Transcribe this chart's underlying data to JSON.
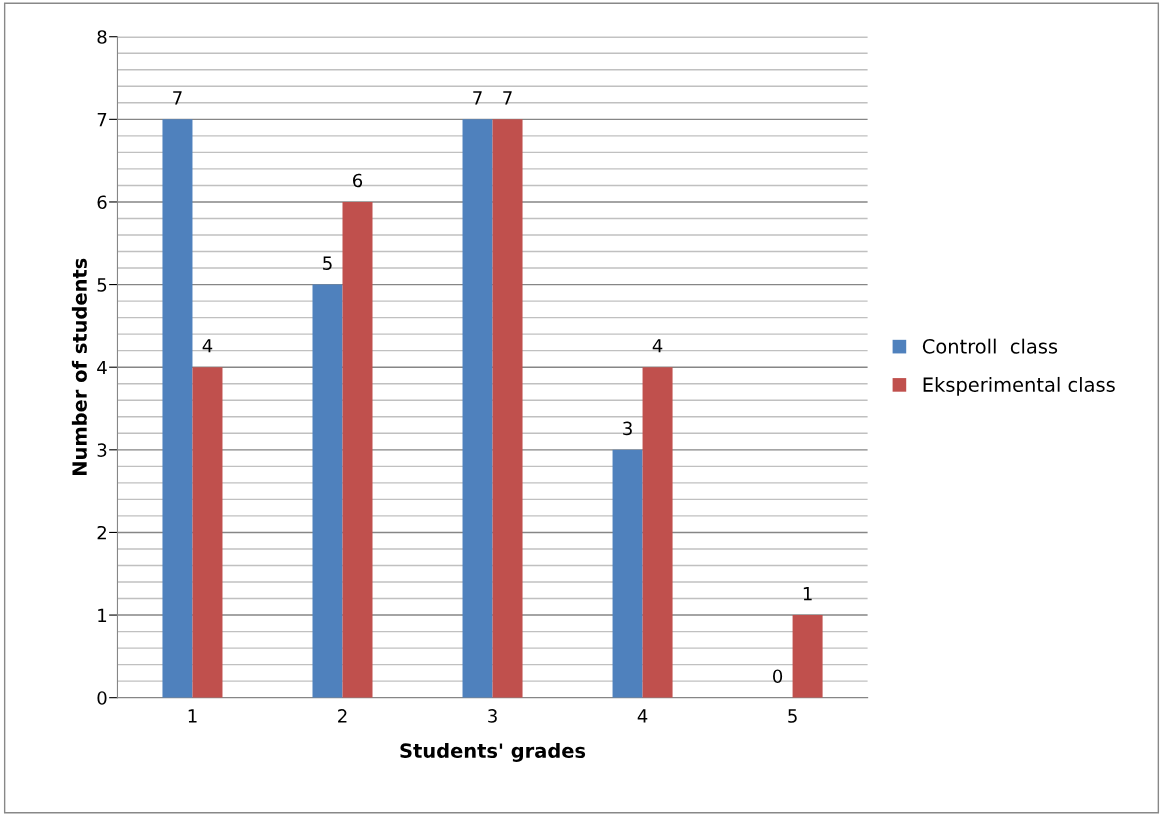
{
  "chart_data": {
    "type": "bar",
    "xlabel": "Students' grades",
    "ylabel": "Number of students",
    "categories": [
      "1",
      "2",
      "3",
      "4",
      "5"
    ],
    "series": [
      {
        "name": "Controll  class",
        "color": "#4f81bd",
        "values": [
          7,
          5,
          7,
          3,
          0
        ]
      },
      {
        "name": "Eksperimental class",
        "color": "#c0504d",
        "values": [
          4,
          6,
          7,
          4,
          1
        ]
      }
    ],
    "ylim": [
      0,
      8
    ],
    "yticks": [
      0,
      {
        "value": 0.2,
        "label": null
      },
      {
        "value": 0.4,
        "label": null
      },
      {
        "value": 0.6,
        "label": null
      },
      {
        "value": 0.8,
        "label": null
      },
      1,
      {
        "value": 1.2,
        "label": null
      },
      {
        "value": 1.4,
        "label": null
      },
      {
        "value": 1.6,
        "label": null
      },
      {
        "value": 1.8,
        "label": null
      },
      2,
      {
        "value": 2.2,
        "label": null
      },
      {
        "value": 2.4,
        "label": null
      },
      {
        "value": 2.6,
        "label": null
      },
      {
        "value": 2.8,
        "label": null
      },
      3,
      {
        "value": 3.2,
        "label": null
      },
      {
        "value": 3.4,
        "label": null
      },
      {
        "value": 3.6,
        "label": null
      },
      {
        "value": 3.8,
        "label": null
      },
      4,
      {
        "value": 4.2,
        "label": null
      },
      {
        "value": 4.4,
        "label": null
      },
      {
        "value": 4.6,
        "label": null
      },
      {
        "value": 4.8,
        "label": null
      },
      5,
      {
        "value": 5.2,
        "label": null
      },
      {
        "value": 5.4,
        "label": null
      },
      {
        "value": 5.6,
        "label": null
      },
      {
        "value": 5.8,
        "label": null
      },
      6,
      {
        "value": 6.2,
        "label": null
      },
      {
        "value": 6.4,
        "label": null
      },
      {
        "value": 6.6,
        "label": null
      },
      {
        "value": 6.8,
        "label": null
      },
      7,
      {
        "value": 7.2,
        "label": null
      },
      {
        "value": 7.4,
        "label": null
      },
      {
        "value": 7.6,
        "label": null
      },
      {
        "value": 7.8,
        "label": null
      },
      8
    ],
    "grid": "y",
    "legend": "right",
    "data_labels": true
  }
}
